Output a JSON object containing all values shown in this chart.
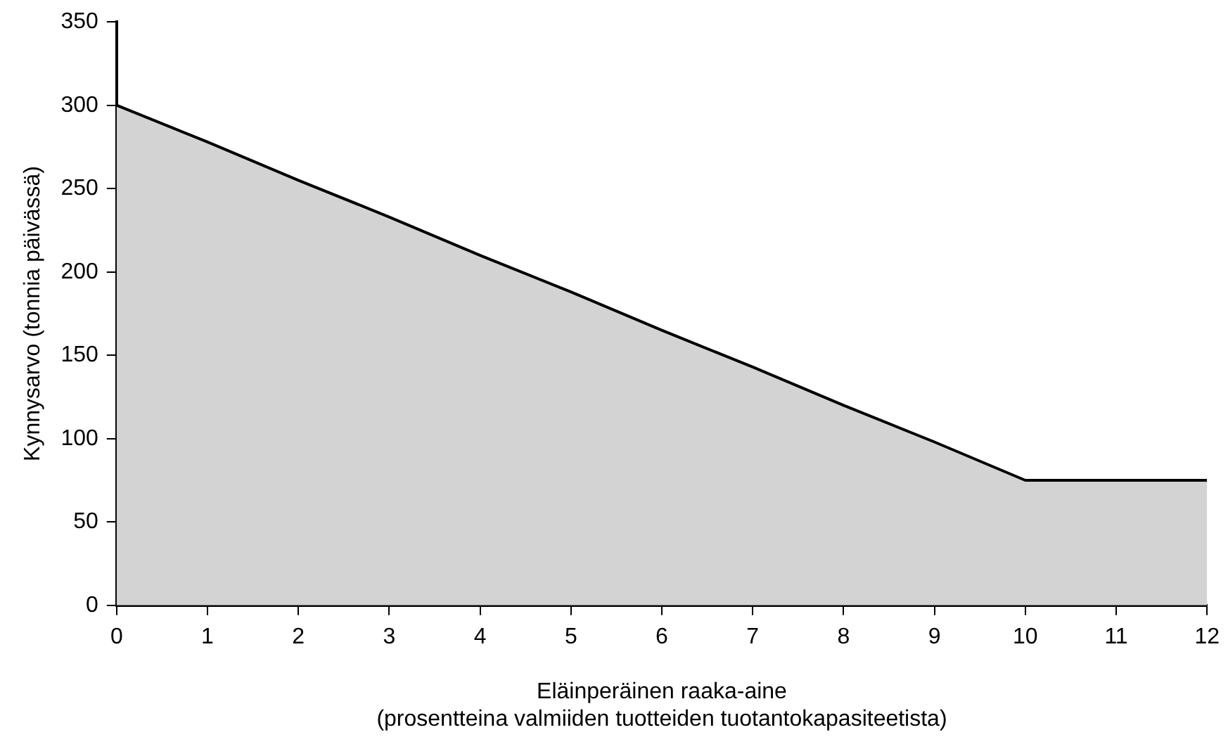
{
  "chart_data": {
    "type": "area",
    "xlabel": "Eläinperäinen raaka-aine\n(prosentteina valmiiden tuotteiden tuotantokapasiteetista)",
    "ylabel": "Kynnysarvo (tonnia päivässä)",
    "x": [
      0,
      1,
      2,
      3,
      4,
      5,
      6,
      7,
      8,
      9,
      10,
      11,
      12
    ],
    "series": [
      {
        "color": "#d3d3d3",
        "values": [
          300,
          278,
          255,
          233,
          210,
          188,
          165,
          143,
          120,
          98,
          75,
          75,
          75
        ]
      }
    ],
    "xlim": [
      0,
      12
    ],
    "xticks": [
      0,
      1,
      2,
      3,
      4,
      5,
      6,
      7,
      8,
      9,
      10,
      11,
      12
    ],
    "ylim": [
      0,
      350
    ],
    "yticks": [
      0,
      50,
      100,
      150,
      200,
      250,
      300,
      350
    ],
    "grid": false,
    "legend": false,
    "marker": "none",
    "line_style": "solid"
  }
}
